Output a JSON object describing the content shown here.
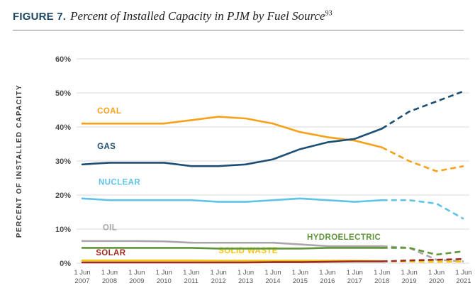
{
  "figure": {
    "label": "FIGURE 7.",
    "title": "Percent of Installed Capacity in PJM by Fuel Source",
    "footnote_ref": "93"
  },
  "chart_data": {
    "type": "line",
    "title": "Percent of Installed Capacity in PJM by Fuel Source",
    "ylabel": "PERCENT OF INSTALLED CAPACITY",
    "xlabel": "",
    "ylim": [
      0,
      60
    ],
    "ytick_step": 10,
    "ytick_suffix": "%",
    "xtick_prefix": "1 Jun",
    "grid": "horizontal",
    "legend_position": "inline-labels",
    "dash_from_index": 11,
    "dash_note": "values from 2018 onward drawn dashed (projection)",
    "categories": [
      "2007",
      "2008",
      "2009",
      "2010",
      "2011",
      "2012",
      "2013",
      "2014",
      "2015",
      "2016",
      "2017",
      "2018",
      "2019",
      "2020",
      "2021"
    ],
    "series": [
      {
        "name": "OIL",
        "color": "#a8a8a8",
        "values": [
          6.5,
          6.5,
          6.5,
          6.4,
          6.0,
          6.0,
          6.0,
          6.0,
          5.5,
          5.0,
          5.0,
          5.0,
          4.5,
          1.0,
          0.5
        ],
        "label": {
          "xi": 0.75,
          "y": 9.7
        }
      },
      {
        "name": "SOLID WASTE",
        "color": "#f2c714",
        "values": [
          0.8,
          0.8,
          0.8,
          0.8,
          0.8,
          0.7,
          0.7,
          0.7,
          0.7,
          0.7,
          0.7,
          0.6,
          0.5,
          0.4,
          0.5
        ],
        "label": {
          "xi": 5.0,
          "y": 2.9
        }
      },
      {
        "name": "HYDROELECTRIC",
        "color": "#5f9639",
        "values": [
          4.5,
          4.5,
          4.5,
          4.5,
          4.5,
          4.3,
          4.3,
          4.3,
          4.3,
          4.5,
          4.5,
          4.5,
          4.5,
          2.5,
          3.5
        ],
        "label": {
          "xi": 8.25,
          "y": 6.9
        }
      },
      {
        "name": "SOLAR",
        "color": "#9e2a25",
        "values": [
          0.2,
          0.2,
          0.2,
          0.2,
          0.2,
          0.2,
          0.2,
          0.3,
          0.3,
          0.4,
          0.5,
          0.5,
          0.8,
          1.0,
          1.2
        ],
        "label": {
          "xi": 0.5,
          "y": 2.3
        }
      },
      {
        "name": "NUCLEAR",
        "color": "#5fc3e7",
        "values": [
          19.0,
          18.5,
          18.5,
          18.5,
          18.5,
          18.0,
          18.0,
          18.5,
          19.0,
          18.5,
          18.0,
          18.5,
          18.5,
          17.5,
          13.0
        ],
        "label": {
          "xi": 0.6,
          "y": 23.0
        }
      },
      {
        "name": "COAL",
        "color": "#f7a11a",
        "values": [
          41.0,
          41.0,
          41.0,
          41.0,
          42.0,
          43.0,
          42.5,
          41.0,
          38.5,
          37.0,
          36.0,
          34.0,
          30.0,
          27.0,
          28.5
        ],
        "label": {
          "xi": 0.55,
          "y": 44.0
        }
      },
      {
        "name": "GAS",
        "color": "#1d4f76",
        "values": [
          29.0,
          29.5,
          29.5,
          29.5,
          28.5,
          28.5,
          29.0,
          30.5,
          33.5,
          35.5,
          36.5,
          39.5,
          44.5,
          47.5,
          50.5
        ],
        "label": {
          "xi": 0.55,
          "y": 33.5
        }
      }
    ]
  }
}
